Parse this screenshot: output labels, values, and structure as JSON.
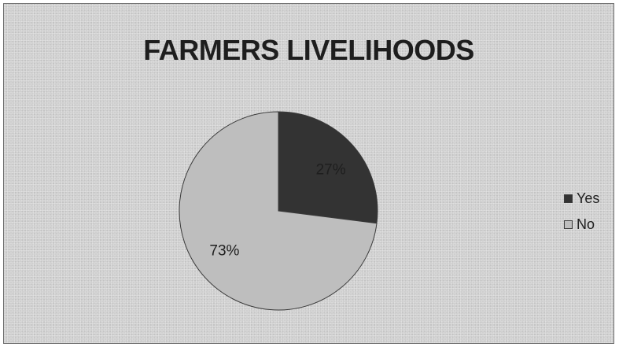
{
  "chart_data": {
    "type": "pie",
    "title": "FARMERS LIVELIHOODS",
    "categories": [
      "Yes",
      "No"
    ],
    "values": [
      27,
      73
    ],
    "data_labels": [
      "27%",
      "73%"
    ],
    "colors": [
      "#333333",
      "#bebebe"
    ],
    "legend": {
      "position": "right",
      "entries": [
        "Yes",
        "No"
      ]
    }
  }
}
